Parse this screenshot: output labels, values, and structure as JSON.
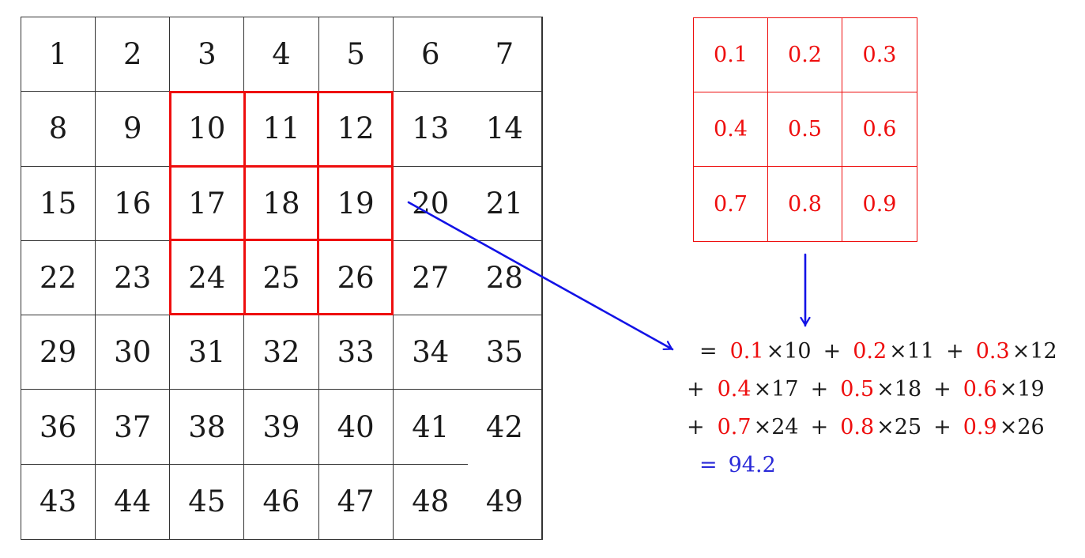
{
  "colors": {
    "red": "#ee0e0e",
    "arrow_blue": "#1212e6",
    "result_blue": "#2a2ad8",
    "grid_line": "#333333",
    "text_black": "#1a1a1a"
  },
  "input_grid": {
    "rows": 7,
    "cols": 7,
    "values": [
      [
        1,
        2,
        3,
        4,
        5,
        6,
        7
      ],
      [
        8,
        9,
        10,
        11,
        12,
        13,
        14
      ],
      [
        15,
        16,
        17,
        18,
        19,
        20,
        21
      ],
      [
        22,
        23,
        24,
        25,
        26,
        27,
        28
      ],
      [
        29,
        30,
        31,
        32,
        33,
        34,
        35
      ],
      [
        36,
        37,
        38,
        39,
        40,
        41,
        42
      ],
      [
        43,
        44,
        45,
        46,
        47,
        48,
        49
      ]
    ],
    "highlight": {
      "row_start": 2,
      "col_start": 3,
      "rows": 3,
      "cols": 3,
      "values": [
        [
          10,
          11,
          12
        ],
        [
          17,
          18,
          19
        ],
        [
          24,
          25,
          26
        ]
      ]
    }
  },
  "kernel_grid": {
    "rows": 3,
    "cols": 3,
    "values": [
      [
        "0.1",
        "0.2",
        "0.3"
      ],
      [
        "0.4",
        "0.5",
        "0.6"
      ],
      [
        "0.7",
        "0.8",
        "0.9"
      ]
    ]
  },
  "equation": {
    "times_symbol": "×",
    "plus_separator": "+",
    "lines": [
      {
        "prefix": "=",
        "terms": [
          {
            "weight": "0.1",
            "value": "10"
          },
          {
            "weight": "0.2",
            "value": "11"
          },
          {
            "weight": "0.3",
            "value": "12"
          }
        ]
      },
      {
        "prefix": "+",
        "terms": [
          {
            "weight": "0.4",
            "value": "17"
          },
          {
            "weight": "0.5",
            "value": "18"
          },
          {
            "weight": "0.6",
            "value": "19"
          }
        ]
      },
      {
        "prefix": "+",
        "terms": [
          {
            "weight": "0.7",
            "value": "24"
          },
          {
            "weight": "0.8",
            "value": "25"
          },
          {
            "weight": "0.9",
            "value": "26"
          }
        ]
      }
    ],
    "result": {
      "prefix": "=",
      "value": "94.2"
    }
  }
}
